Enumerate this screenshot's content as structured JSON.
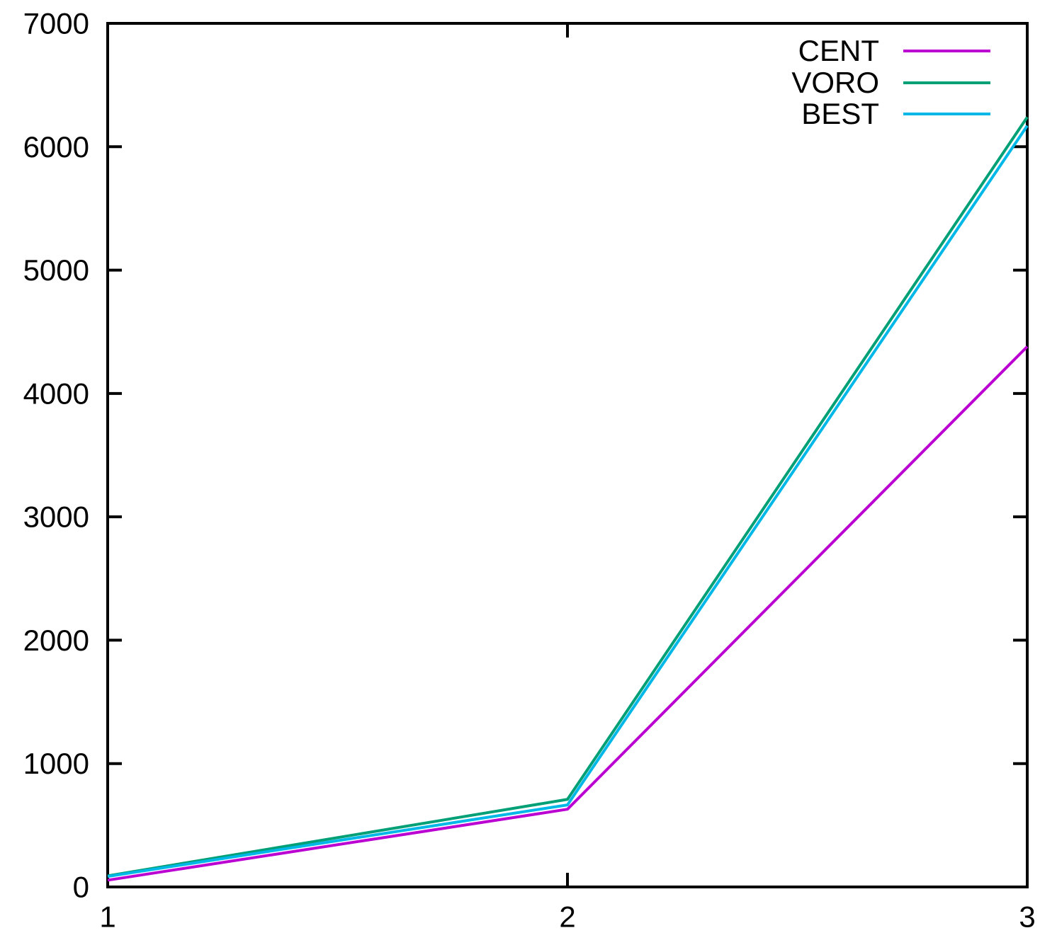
{
  "chart_data": {
    "type": "line",
    "title": "",
    "xlabel": "",
    "ylabel": "",
    "x": [
      1,
      2,
      3
    ],
    "series": [
      {
        "name": "CENT",
        "color": "#bb00d2",
        "values": [
          55,
          630,
          4380
        ]
      },
      {
        "name": "VORO",
        "color": "#00a077",
        "values": [
          90,
          710,
          6240
        ]
      },
      {
        "name": "BEST",
        "color": "#00b8e8",
        "values": [
          85,
          665,
          6170
        ]
      }
    ],
    "xlim": [
      1,
      3
    ],
    "ylim": [
      0,
      7000
    ],
    "xticks": [
      "1",
      "2",
      "3"
    ],
    "yticks": [
      "0",
      "1000",
      "2000",
      "3000",
      "4000",
      "5000",
      "6000",
      "7000"
    ],
    "grid": false,
    "legend_position": "top-right",
    "axis_color": "#000000",
    "background": "#ffffff",
    "draw_order": [
      "CENT",
      "VORO",
      "BEST"
    ]
  }
}
